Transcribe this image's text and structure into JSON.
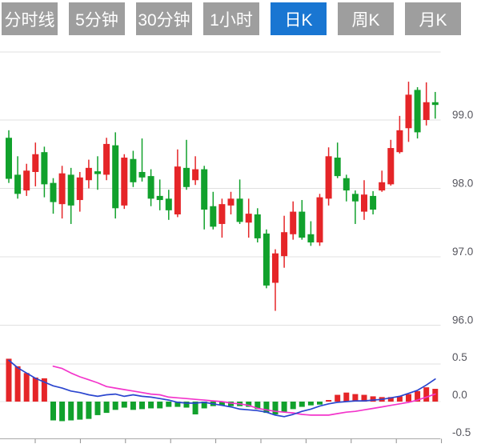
{
  "tabs": {
    "items": [
      {
        "id": "timeline",
        "label": "分时线",
        "active": false
      },
      {
        "id": "5min",
        "label": "5分钟",
        "active": false
      },
      {
        "id": "30min",
        "label": "30分钟",
        "active": false
      },
      {
        "id": "1hour",
        "label": "1小时",
        "active": false
      },
      {
        "id": "daily",
        "label": "日K",
        "active": true
      },
      {
        "id": "weekly",
        "label": "周K",
        "active": false
      },
      {
        "id": "monthly",
        "label": "月K",
        "active": false
      }
    ]
  },
  "colors": {
    "up": "#e52528",
    "down": "#11a12c",
    "dif_line": "#2b46cf",
    "dea_line": "#f335cb",
    "grid": "#e0e0e0",
    "zero_grid": "#e8e8e8",
    "axis": "#a8a8a8",
    "tick": "#8f8f8f",
    "label": "#55555d",
    "tab_bg": "#9e9e9e",
    "tab_active_bg": "#1976d2",
    "tab_text": "#ffffff"
  },
  "chart_data": {
    "type": "candlestick+macd",
    "legend_position": "none",
    "grid": true,
    "main": {
      "title": "",
      "ylabels": [
        "99.0",
        "98.0",
        "97.0",
        "96.0"
      ],
      "yticks": [
        99.0,
        98.0,
        97.0,
        96.0
      ],
      "ylim": [
        96.0,
        99.99
      ],
      "candles_ohlc": [
        [
          98.74,
          98.85,
          98.08,
          98.14
        ],
        [
          98.2,
          98.47,
          97.85,
          97.92
        ],
        [
          97.97,
          98.36,
          97.89,
          98.26
        ],
        [
          98.24,
          98.67,
          98.03,
          98.5
        ],
        [
          98.53,
          98.61,
          97.87,
          98.06
        ],
        [
          98.08,
          98.15,
          97.63,
          97.8
        ],
        [
          97.77,
          98.33,
          97.56,
          98.22
        ],
        [
          98.2,
          98.3,
          97.48,
          97.75
        ],
        [
          97.83,
          98.24,
          97.66,
          98.16
        ],
        [
          98.12,
          98.42,
          98.0,
          98.3
        ],
        [
          98.25,
          98.47,
          97.98,
          98.21
        ],
        [
          98.2,
          98.74,
          98.12,
          98.65
        ],
        [
          98.63,
          98.82,
          97.56,
          97.71
        ],
        [
          97.75,
          98.5,
          97.7,
          98.45
        ],
        [
          98.43,
          98.55,
          98.02,
          98.09
        ],
        [
          98.24,
          98.73,
          98.1,
          98.16
        ],
        [
          98.18,
          98.28,
          97.74,
          97.85
        ],
        [
          97.89,
          98.13,
          97.68,
          97.83
        ],
        [
          97.85,
          97.98,
          97.54,
          97.68
        ],
        [
          97.62,
          98.57,
          97.58,
          98.32
        ],
        [
          98.3,
          98.71,
          97.98,
          98.02
        ],
        [
          98.12,
          98.47,
          98.05,
          98.28
        ],
        [
          98.28,
          98.33,
          97.4,
          97.69
        ],
        [
          97.74,
          97.95,
          97.4,
          97.44
        ],
        [
          97.48,
          97.85,
          97.28,
          97.77
        ],
        [
          97.75,
          97.95,
          97.62,
          97.85
        ],
        [
          97.85,
          98.13,
          97.48,
          97.51
        ],
        [
          97.5,
          97.85,
          97.28,
          97.63
        ],
        [
          97.62,
          97.71,
          97.21,
          97.27
        ],
        [
          97.34,
          97.4,
          96.54,
          96.58
        ],
        [
          96.62,
          97.11,
          96.21,
          97.05
        ],
        [
          97.01,
          97.6,
          96.84,
          97.36
        ],
        [
          97.33,
          97.81,
          97.25,
          97.66
        ],
        [
          97.66,
          97.83,
          97.25,
          97.28
        ],
        [
          97.33,
          97.52,
          97.16,
          97.21
        ],
        [
          97.21,
          97.92,
          97.16,
          97.87
        ],
        [
          97.85,
          98.6,
          97.75,
          98.47
        ],
        [
          98.45,
          98.67,
          98.15,
          98.18
        ],
        [
          98.15,
          98.2,
          97.81,
          97.97
        ],
        [
          97.92,
          97.97,
          97.48,
          97.81
        ],
        [
          97.66,
          98.12,
          97.54,
          97.91
        ],
        [
          97.89,
          97.96,
          97.62,
          97.69
        ],
        [
          97.97,
          98.26,
          97.95,
          98.09
        ],
        [
          98.06,
          98.71,
          98.04,
          98.59
        ],
        [
          98.53,
          99.06,
          98.51,
          98.85
        ],
        [
          98.88,
          99.56,
          98.68,
          99.37
        ],
        [
          99.44,
          99.48,
          98.73,
          98.82
        ],
        [
          99.0,
          99.55,
          98.92,
          99.26
        ],
        [
          99.26,
          99.41,
          99.02,
          99.22
        ]
      ]
    },
    "macd": {
      "ylabels": [
        "0.5",
        "0.0",
        "-0.5"
      ],
      "yticks": [
        0.5,
        0.0,
        -0.5
      ],
      "ylim": [
        -0.5,
        0.55
      ],
      "histogram": [
        0.57,
        0.47,
        0.38,
        0.32,
        0.31,
        -0.25,
        -0.26,
        -0.25,
        -0.24,
        -0.23,
        -0.18,
        -0.15,
        -0.11,
        -0.08,
        -0.11,
        -0.1,
        -0.09,
        -0.09,
        -0.07,
        -0.07,
        -0.08,
        -0.17,
        -0.09,
        -0.06,
        -0.05,
        -0.06,
        -0.06,
        -0.07,
        -0.1,
        -0.15,
        -0.17,
        -0.14,
        -0.1,
        -0.07,
        -0.05,
        -0.04,
        0.02,
        0.09,
        0.12,
        0.1,
        0.09,
        0.07,
        0.06,
        0.06,
        0.07,
        0.1,
        0.14,
        0.19,
        0.17
      ],
      "dif": [
        0.55,
        0.45,
        0.38,
        0.31,
        0.26,
        0.21,
        0.18,
        0.14,
        0.12,
        0.09,
        0.07,
        0.09,
        0.1,
        0.07,
        0.09,
        0.07,
        0.06,
        0.04,
        0.02,
        -0.01,
        -0.02,
        -0.02,
        -0.01,
        -0.03,
        -0.05,
        -0.07,
        -0.1,
        -0.11,
        -0.12,
        -0.14,
        -0.18,
        -0.2,
        -0.17,
        -0.13,
        -0.1,
        -0.06,
        -0.03,
        -0.01,
        0.0,
        0.01,
        0.01,
        0.02,
        0.03,
        0.05,
        0.07,
        0.11,
        0.15,
        0.22,
        0.3
      ],
      "dea": [
        null,
        null,
        null,
        null,
        null,
        0.47,
        0.44,
        0.38,
        0.33,
        0.29,
        0.25,
        0.2,
        0.18,
        0.16,
        0.14,
        0.12,
        0.1,
        0.09,
        0.06,
        0.05,
        0.04,
        0.03,
        0.02,
        0.01,
        0.0,
        -0.02,
        -0.03,
        -0.05,
        -0.09,
        -0.11,
        -0.13,
        -0.14,
        -0.15,
        -0.17,
        -0.18,
        -0.18,
        -0.18,
        -0.16,
        -0.14,
        -0.13,
        -0.11,
        -0.09,
        -0.07,
        -0.05,
        -0.03,
        -0.01,
        0.02,
        0.06,
        0.1
      ]
    }
  }
}
